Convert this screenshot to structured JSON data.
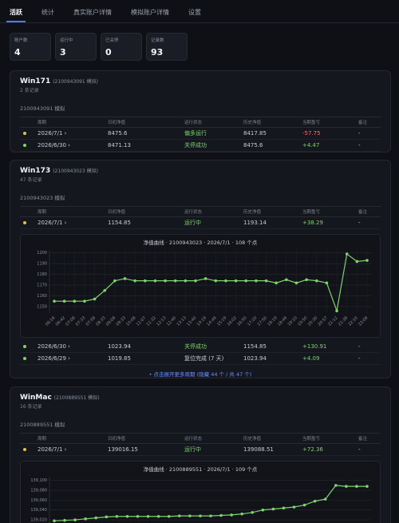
{
  "tabs": [
    "活跃",
    "统计",
    "真实账户详情",
    "模拟账户详情",
    "设置"
  ],
  "stats": [
    {
      "label": "账户数",
      "value": 4
    },
    {
      "label": "运行中",
      "value": 3
    },
    {
      "label": "已关停",
      "value": 0
    },
    {
      "label": "记录数",
      "value": 93
    }
  ],
  "table_headers": [
    "周期",
    "日初净值",
    "运行状态",
    "历史净值",
    "当期盈亏",
    "备注"
  ],
  "accounts": [
    {
      "name": "Win171",
      "id_note": "(2100943091 模拟)",
      "records": "2 条记录",
      "subheader": "2100943091 模拟",
      "rows": [
        {
          "dot": "#e3c04a",
          "status_color": "#7ed36b",
          "cells": [
            "2026/7/1 ›",
            "8475.6",
            "偏多运行",
            "8417.85",
            "-57.75",
            "-"
          ]
        },
        {
          "dot": "#7ed36b",
          "status_color": "#7ed36b",
          "cells": [
            "2026/6/30 ›",
            "8471.13",
            "关停成功",
            "8475.6",
            "+4.47",
            "-"
          ]
        }
      ]
    },
    {
      "name": "Win173",
      "id_note": "(2100943023 模拟)",
      "records": "47 条记录",
      "subheader": "2100943023 模拟",
      "rows": [
        {
          "dot": "#e3c04a",
          "status_color": "#7ed36b",
          "cells": [
            "2026/7/1 ›",
            "1154.85",
            "运行中",
            "1193.14",
            "+38.29",
            "-"
          ]
        }
      ],
      "rows_after": [
        {
          "dot": "#7ed36b",
          "status_color": "#7ed36b",
          "cells": [
            "2026/6/30 ›",
            "1023.94",
            "关停成功",
            "1154.85",
            "+130.91",
            "-"
          ]
        },
        {
          "dot": "#7ed36b",
          "status_color": "#c9ccd2",
          "cells": [
            "2026/6/29 ›",
            "1019.85",
            "复位完成 (7 天)",
            "1023.94",
            "+4.09",
            "-"
          ]
        }
      ],
      "more": "• 点击展开更多周期 (隐藏 44 个 / 共 47 个)"
    },
    {
      "name": "WinMac",
      "id_note": "(2100889551 模拟)",
      "records": "16 条记录",
      "subheader": "2100889551 模拟",
      "rows": [
        {
          "dot": "#e3c04a",
          "status_color": "#7ed36b",
          "cells": [
            "2026/7/1 ›",
            "139016.15",
            "运行中",
            "139088.51",
            "+72.36",
            "-"
          ]
        }
      ]
    }
  ],
  "chart_data": [
    {
      "type": "line",
      "title": "净值曲线 · 2100943023 · 2026/7/1 · 108 个点",
      "categories": [
        "06:16",
        "06:42",
        "07:08",
        "07:33",
        "07:58",
        "08:33",
        "09:08",
        "09:33",
        "10:08",
        "11:07",
        "11:32",
        "12:13",
        "12:40",
        "13:13",
        "13:40",
        "14:19",
        "14:49",
        "15:19",
        "16:02",
        "16:50",
        "17:20",
        "17:50",
        "18:19",
        "18:49",
        "19:10",
        "19:50",
        "20:30",
        "20:57",
        "21:12",
        "21:38",
        "22:10",
        "23:08"
      ],
      "series": [
        {
          "color": "#7ed36b",
          "values": [
            1155,
            1155,
            1155,
            1155,
            1157,
            1165,
            1174,
            1176,
            1174,
            1174,
            1174,
            1174,
            1174,
            1174,
            1174,
            1176,
            1174,
            1174,
            1174,
            1174,
            1174,
            1174,
            1172,
            1175,
            1172,
            1175,
            1174,
            1172,
            1146,
            1199,
            1192,
            1193
          ]
        }
      ],
      "ylim": [
        1144,
        1202
      ],
      "yticks": [
        1150,
        1160,
        1170,
        1180,
        1190,
        1200
      ],
      "grid": true
    },
    {
      "type": "line",
      "title": "净值曲线 · 2100889551 · 2026/7/1 · 109 个点",
      "series": [
        {
          "color": "#7ed36b",
          "values": [
            139018,
            139019,
            139020,
            139022,
            139024,
            139026,
            139027,
            139027,
            139027,
            139027,
            139027,
            139027,
            139028,
            139028,
            139028,
            139028,
            139029,
            139030,
            139032,
            139035,
            139040,
            139042,
            139044,
            139046,
            139050,
            139058,
            139062,
            139090,
            139088,
            139088,
            139088
          ]
        }
      ],
      "ylim": [
        139012,
        139106
      ],
      "yticks": [
        {
          "value": 139020,
          "label": "139,020"
        },
        {
          "value": 139040,
          "label": "139,040"
        },
        {
          "value": 139060,
          "label": "139,060"
        },
        {
          "value": 139080,
          "label": "139,080"
        },
        {
          "value": 139100,
          "label": "139,100"
        }
      ],
      "grid": true
    }
  ]
}
